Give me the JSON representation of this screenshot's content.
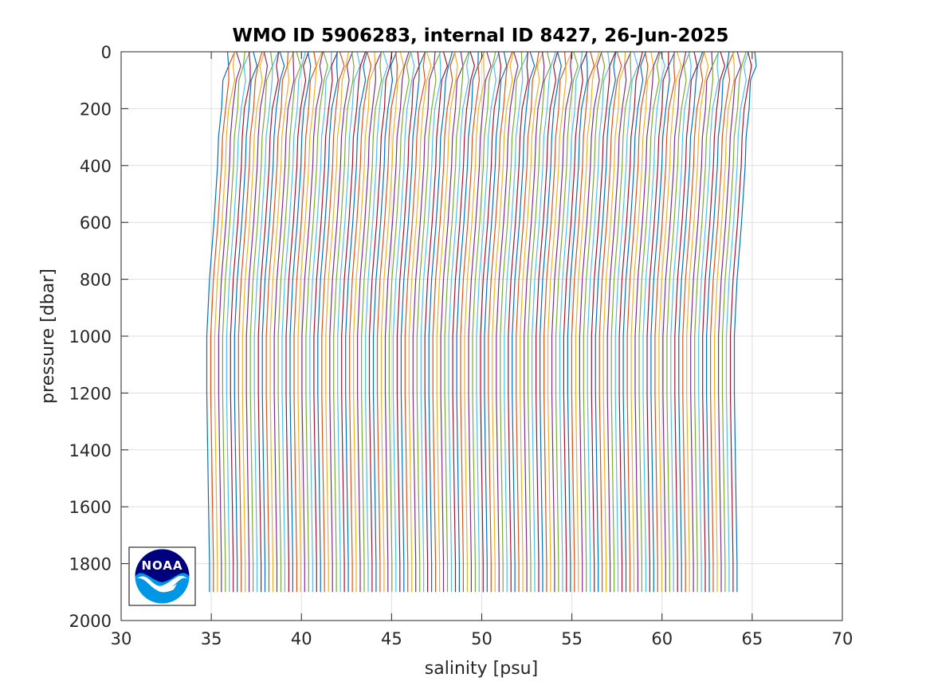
{
  "chart_data": {
    "type": "line",
    "title": "WMO ID 5906283, internal ID 8427, 26-Jun-2025",
    "xlabel": "salinity [psu]",
    "ylabel": "pressure [dbar]",
    "xlim": [
      30,
      70
    ],
    "ylim": [
      0,
      2000
    ],
    "y_reversed": true,
    "grid": true,
    "xticks": [
      "30",
      "35",
      "40",
      "45",
      "50",
      "55",
      "60",
      "65",
      "70"
    ],
    "yticks": [
      "0",
      "200",
      "400",
      "600",
      "800",
      "1000",
      "1200",
      "1400",
      "1600",
      "1800",
      "2000"
    ],
    "profiles": {
      "count": 134,
      "offset_step_psu": 0.22,
      "first_profile": {
        "pressure": [
          0,
          50,
          100,
          200,
          300,
          400,
          600,
          800,
          1000,
          1200,
          1400,
          1600,
          1800,
          1900
        ],
        "salinity": [
          35.9,
          35.85,
          35.75,
          35.55,
          35.4,
          35.35,
          35.15,
          34.9,
          34.75,
          34.75,
          34.8,
          34.85,
          34.9,
          34.9
        ]
      },
      "series_colors": [
        "#0072BD",
        "#D95319",
        "#EDB120",
        "#7E2F8E",
        "#77AC30",
        "#4DBEEE",
        "#A2142F"
      ]
    },
    "logo": {
      "text": "NOAA",
      "colors": {
        "dark": "#00007F",
        "light": "#0096E6"
      }
    }
  }
}
